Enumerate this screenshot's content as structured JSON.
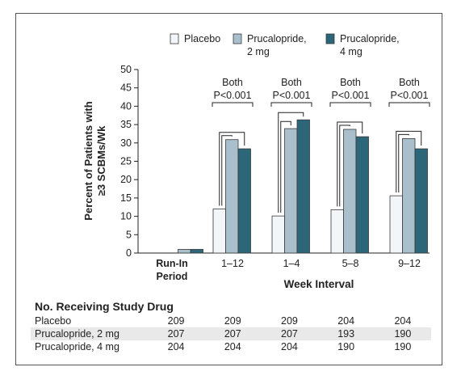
{
  "chart_data": {
    "type": "bar",
    "ylabel": "Percent of Patients with ≥3 SCBMs/Wk",
    "xlabel": "Week Interval",
    "ylim": [
      0,
      50
    ],
    "yticks": [
      0,
      5,
      10,
      15,
      20,
      25,
      30,
      35,
      40,
      45,
      50
    ],
    "categories": [
      "Run-In Period",
      "1–12",
      "1–4",
      "5–8",
      "9–12"
    ],
    "category_lines": [
      [
        "Run-In",
        "Period"
      ],
      [
        "1–12"
      ],
      [
        "1–4"
      ],
      [
        "5–8"
      ],
      [
        "9–12"
      ]
    ],
    "series": [
      {
        "name": "Placebo",
        "color": "#f2f6f8",
        "values": [
          null,
          12.0,
          10.1,
          11.8,
          15.6
        ]
      },
      {
        "name": "Prucalopride, 2 mg",
        "color": "#a9bfcb",
        "values": [
          1.0,
          30.9,
          33.9,
          33.7,
          31.2
        ]
      },
      {
        "name": "Prucalopride, 4 mg",
        "color": "#2b6679",
        "values": [
          1.0,
          28.4,
          36.3,
          31.7,
          28.4
        ]
      }
    ],
    "legend_lines": [
      [
        "Placebo"
      ],
      [
        "Prucalopride,",
        "2 mg"
      ],
      [
        "Prucalopride,",
        "4 mg"
      ]
    ],
    "annotations": [
      "Both",
      "P<0.001"
    ],
    "legend": "top"
  },
  "table": {
    "title": "No. Receiving Study Drug",
    "rows": [
      {
        "label": "Placebo",
        "values": [
          "209",
          "209",
          "209",
          "204",
          "204"
        ]
      },
      {
        "label": "Prucalopride, 2 mg",
        "values": [
          "207",
          "207",
          "207",
          "193",
          "190"
        ]
      },
      {
        "label": "Prucalopride, 4 mg",
        "values": [
          "204",
          "204",
          "204",
          "190",
          "190"
        ]
      }
    ]
  }
}
